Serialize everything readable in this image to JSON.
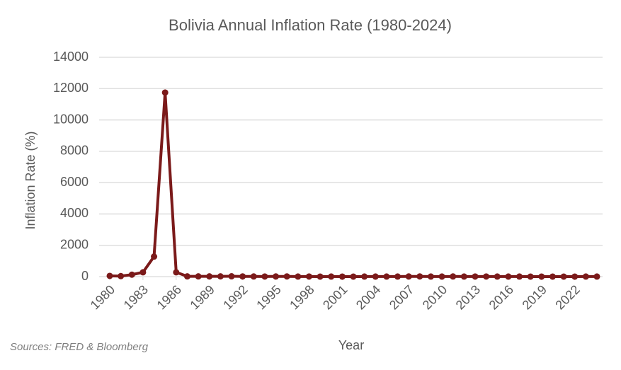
{
  "chart_data": {
    "type": "line",
    "title": "Bolivia Annual Inflation Rate  (1980-2024)",
    "x_label": "Year",
    "y_label": "Inflation Rate (%)",
    "source": "Sources: FRED & Bloomberg",
    "x": [
      1980,
      1981,
      1982,
      1983,
      1984,
      1985,
      1986,
      1987,
      1988,
      1989,
      1990,
      1991,
      1992,
      1993,
      1994,
      1995,
      1996,
      1997,
      1998,
      1999,
      2000,
      2001,
      2002,
      2003,
      2004,
      2005,
      2006,
      2007,
      2008,
      2009,
      2010,
      2011,
      2012,
      2013,
      2014,
      2015,
      2016,
      2017,
      2018,
      2019,
      2020,
      2021,
      2022,
      2023,
      2024
    ],
    "series": [
      {
        "name": "Inflation Rate",
        "color": "#7b1a1a",
        "values": [
          47,
          32,
          124,
          276,
          1281,
          11750,
          276,
          15,
          16,
          15,
          17,
          21,
          12,
          9,
          8,
          10,
          12,
          5,
          8,
          2,
          5,
          2,
          1,
          3,
          4,
          5,
          4,
          9,
          14,
          3,
          3,
          10,
          5,
          6,
          6,
          4,
          4,
          3,
          2,
          2,
          1,
          1,
          2,
          3,
          5
        ]
      }
    ],
    "xlim": [
      1980,
      2024
    ],
    "xticks": [
      1980,
      1983,
      1986,
      1989,
      1992,
      1995,
      1998,
      2001,
      2004,
      2007,
      2010,
      2013,
      2016,
      2019,
      2022
    ],
    "ylim": [
      0,
      14000
    ],
    "yticks": [
      0,
      2000,
      4000,
      6000,
      8000,
      10000,
      12000,
      14000
    ],
    "grid": true
  }
}
